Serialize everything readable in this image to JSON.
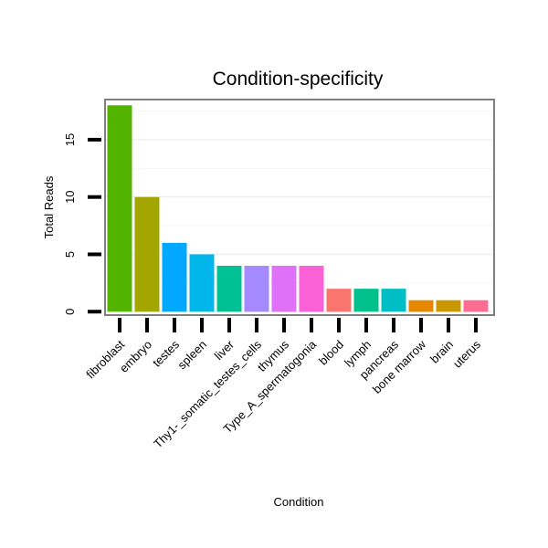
{
  "chart_data": {
    "type": "bar",
    "title": "Condition-specificity",
    "xlabel": "Condition",
    "ylabel": "Total Reads",
    "ylim": [
      -0.3,
      18.5
    ],
    "yticks": [
      0,
      5,
      10,
      15
    ],
    "grid": true,
    "legend": "none",
    "categories": [
      "fibroblast",
      "embryo",
      "testes",
      "spleen",
      "liver",
      "Thy1-_somatic_testes_cells",
      "thymus",
      "Type_A_spermatogonia",
      "blood",
      "lymph",
      "pancreas",
      "bone marrow",
      "brain",
      "uterus"
    ],
    "values": [
      18,
      10,
      6,
      5,
      4,
      4,
      4,
      4,
      2,
      2,
      2,
      1,
      1,
      1
    ],
    "colors": [
      "#53B400",
      "#A3A500",
      "#00A9FF",
      "#00B6EB",
      "#00C094",
      "#A58AFF",
      "#DF70F8",
      "#FB61D7",
      "#F8766D",
      "#00C08B",
      "#00BFC4",
      "#E58700",
      "#C99800",
      "#FF6C91"
    ]
  }
}
